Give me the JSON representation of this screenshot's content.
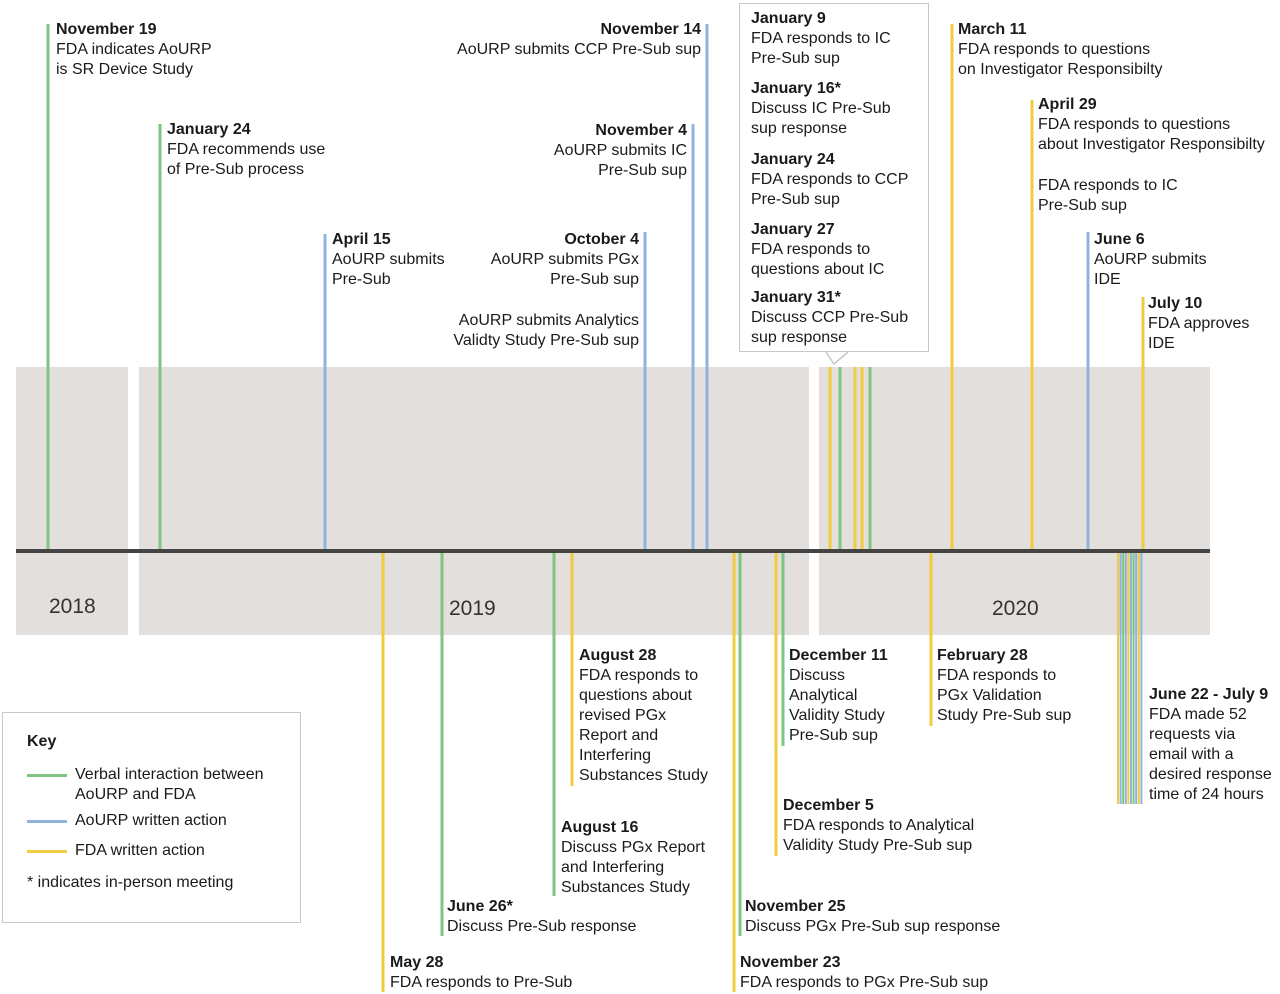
{
  "years": [
    "2018",
    "2019",
    "2020"
  ],
  "key": {
    "title": "Key",
    "items": [
      {
        "label": "Verbal interaction between\nAoURP and FDA",
        "color": "#7fc47f"
      },
      {
        "label": "AoURP written action",
        "color": "#8fb4dc"
      },
      {
        "label": "FDA written action",
        "color": "#f2cb3f"
      }
    ],
    "note": "* indicates in-person meeting"
  },
  "colors": {
    "verbal": "#7fc47f",
    "aourp": "#8fb4dc",
    "fda": "#f2cb3f",
    "band": "#e2dfdc",
    "axis": "#444444"
  },
  "events_above": [
    {
      "date": "November 19",
      "text": "FDA indicates AoURP\nis SR Device Study",
      "type": "verbal"
    },
    {
      "date": "January 24",
      "text": "FDA recommends use\nof Pre-Sub process",
      "type": "verbal"
    },
    {
      "date": "April 15",
      "text": "AoURP submits\nPre-Sub",
      "type": "aourp"
    },
    {
      "date": "October 4",
      "text": "AoURP submits PGx\nPre-Sub sup",
      "text2": "AoURP submits Analytics\nValidty Study Pre-Sub sup",
      "type": "aourp"
    },
    {
      "date": "November 4",
      "text": "AoURP submits IC\nPre-Sub sup",
      "type": "aourp"
    },
    {
      "date": "November 14",
      "text": "AoURP submits CCP Pre-Sub sup",
      "type": "aourp"
    },
    {
      "date": "March 11",
      "text": "FDA responds to questions\non Investigator Responsibilty",
      "type": "fda"
    },
    {
      "date": "April 29",
      "text": "FDA responds to questions\nabout Investigator Responsibilty",
      "text2": "FDA responds to IC\nPre-Sub sup",
      "type": "fda"
    },
    {
      "date": "June 6",
      "text": "AoURP submits\nIDE",
      "type": "aourp"
    },
    {
      "date": "July 10",
      "text": "FDA approves\nIDE",
      "type": "fda"
    }
  ],
  "callout": [
    {
      "date": "January 9",
      "text": "FDA responds to IC\nPre-Sub sup"
    },
    {
      "date": "January 16*",
      "text": "Discuss IC Pre-Sub\nsup response"
    },
    {
      "date": "January 24",
      "text": "FDA responds to CCP\nPre-Sub sup"
    },
    {
      "date": "January 27",
      "text": "FDA responds to\nquestions about IC"
    },
    {
      "date": "January 31*",
      "text": "Discuss CCP Pre-Sub\nsup response"
    }
  ],
  "events_below": [
    {
      "date": "May 28",
      "text": "FDA responds to Pre-Sub",
      "type": "fda"
    },
    {
      "date": "June 26*",
      "text": "Discuss Pre-Sub response",
      "type": "verbal"
    },
    {
      "date": "August 16",
      "text": "Discuss PGx Report\nand Interfering\nSubstances Study",
      "type": "verbal"
    },
    {
      "date": "August 28",
      "text": "FDA responds to\nquestions about\nrevised PGx\nReport and\nInterfering\nSubstances Study",
      "type": "fda"
    },
    {
      "date": "November 23",
      "text": "FDA responds to PGx Pre-Sub sup",
      "type": "fda"
    },
    {
      "date": "November 25",
      "text": "Discuss PGx Pre-Sub sup response",
      "type": "verbal"
    },
    {
      "date": "December 5",
      "text": "FDA responds to Analytical\nValidity Study Pre-Sub sup",
      "type": "fda"
    },
    {
      "date": "December 11",
      "text": "Discuss\nAnalytical\nValidity Study\nPre-Sub sup",
      "type": "verbal"
    },
    {
      "date": "February 28",
      "text": "FDA responds to\nPGx Validation\nStudy Pre-Sub sup",
      "type": "fda"
    },
    {
      "date": "June 22 - July 9",
      "text": "FDA made 52\nrequests via\nemail with a\ndesired response\ntime of 24 hours",
      "type": "fda"
    }
  ]
}
